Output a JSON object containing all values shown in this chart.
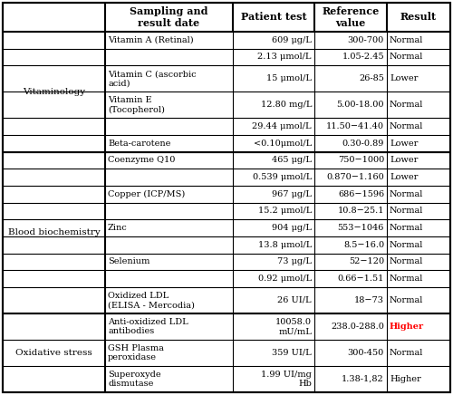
{
  "col_headers": [
    "Sampling and\nresult date",
    "Patient test",
    "Reference\nvalue",
    "Result"
  ],
  "row_groups": [
    {
      "group_label": "Vitaminology",
      "rows": [
        {
          "test": "Vitamin A (Retinal)",
          "sub": false,
          "value": "609 μg/L",
          "ref": "300-700",
          "result": "Normal",
          "result_color": "#000000"
        },
        {
          "test": "",
          "sub": true,
          "value": "2.13 μmol/L",
          "ref": "1.05-2.45",
          "result": "Normal",
          "result_color": "#000000"
        },
        {
          "test": "Vitamin C (ascorbic\nacid)",
          "sub": false,
          "value": "15 μmol/L",
          "ref": "26-85",
          "result": "Lower",
          "result_color": "#000000"
        },
        {
          "test": "Vitamin E\n(Tocopherol)",
          "sub": false,
          "value": "12.80 mg/L",
          "ref": "5.00-18.00",
          "result": "Normal",
          "result_color": "#000000"
        },
        {
          "test": "",
          "sub": true,
          "value": "29.44 μmol/L",
          "ref": "11.50−41.40",
          "result": "Normal",
          "result_color": "#000000"
        },
        {
          "test": "Beta-carotene",
          "sub": false,
          "value": "<0.10μmol/L",
          "ref": "0.30-0.89",
          "result": "Lower",
          "result_color": "#000000"
        }
      ]
    },
    {
      "group_label": "Blood biochemistry",
      "rows": [
        {
          "test": "Coenzyme Q10",
          "sub": false,
          "value": "465 μg/L",
          "ref": "750−1000",
          "result": "Lower",
          "result_color": "#000000"
        },
        {
          "test": "",
          "sub": true,
          "value": "0.539 μmol/L",
          "ref": "0.870−1.160",
          "result": "Lower",
          "result_color": "#000000"
        },
        {
          "test": "Copper (ICP/MS)",
          "sub": false,
          "value": "967 μg/L",
          "ref": "686−1596",
          "result": "Normal",
          "result_color": "#000000"
        },
        {
          "test": "",
          "sub": true,
          "value": "15.2 μmol/L",
          "ref": "10.8−25.1",
          "result": "Normal",
          "result_color": "#000000"
        },
        {
          "test": "Zinc",
          "sub": false,
          "value": "904 μg/L",
          "ref": "553−1046",
          "result": "Normal",
          "result_color": "#000000"
        },
        {
          "test": "",
          "sub": true,
          "value": "13.8 μmol/L",
          "ref": "8.5−16.0",
          "result": "Normal",
          "result_color": "#000000"
        },
        {
          "test": "Selenium",
          "sub": false,
          "value": "73 μg/L",
          "ref": "52−120",
          "result": "Normal",
          "result_color": "#000000"
        },
        {
          "test": "",
          "sub": true,
          "value": "0.92 μmol/L",
          "ref": "0.66−1.51",
          "result": "Normal",
          "result_color": "#000000"
        },
        {
          "test": "Oxidized LDL\n(ELISA - Mercodia)",
          "sub": false,
          "value": "26 UI/L",
          "ref": "18−73",
          "result": "Normal",
          "result_color": "#000000"
        }
      ]
    },
    {
      "group_label": "Oxidative stress",
      "rows": [
        {
          "test": "Anti-oxidized LDL\nantibodies",
          "sub": false,
          "value": "10058.0\nmU/mL",
          "ref": "238.0-288.0",
          "result": "Higher",
          "result_color": "#ff0000"
        },
        {
          "test": "GSH Plasma\nperoxidase",
          "sub": false,
          "value": "359 UI/L",
          "ref": "300-450",
          "result": "Normal",
          "result_color": "#000000"
        },
        {
          "test": "Superoxyde\ndismutase",
          "sub": false,
          "value": "1.99 UI/mg\nHb",
          "ref": "1.38-1,82",
          "result": "Higher",
          "result_color": "#000000"
        }
      ]
    }
  ],
  "font_size": 7.0,
  "header_font_size": 8.0,
  "group_font_size": 7.5
}
